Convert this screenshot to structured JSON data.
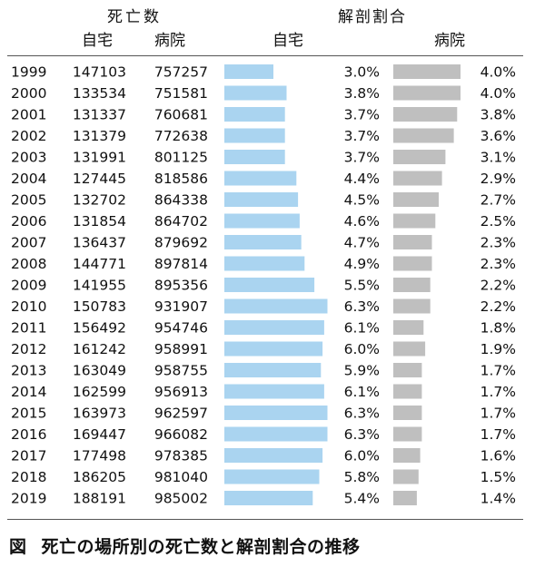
{
  "caption": {
    "label": "図",
    "title": "死亡の場所別の死亡数と解剖割合の推移"
  },
  "chart_data": {
    "type": "table",
    "header": {
      "deaths_group": "死亡数",
      "autopsy_group": "解剖割合",
      "home": "自宅",
      "hospital": "病院"
    },
    "colors": {
      "home_bar": "#aad4f0",
      "hospital_bar": "#bfbfbf"
    },
    "years": [
      "1999",
      "2000",
      "2001",
      "2002",
      "2003",
      "2004",
      "2005",
      "2006",
      "2007",
      "2008",
      "2009",
      "2010",
      "2011",
      "2012",
      "2013",
      "2014",
      "2015",
      "2016",
      "2017",
      "2018",
      "2019"
    ],
    "deaths_home": [
      147103,
      133534,
      131337,
      131379,
      131991,
      127445,
      132702,
      131854,
      136437,
      144771,
      141955,
      150783,
      156492,
      161242,
      163049,
      162599,
      163973,
      169447,
      177498,
      186205,
      188191
    ],
    "deaths_hospital": [
      757257,
      751581,
      760681,
      772638,
      801125,
      818586,
      864338,
      864702,
      879692,
      897814,
      895356,
      931907,
      954746,
      958991,
      958755,
      956913,
      962597,
      966082,
      978385,
      981040,
      985002
    ],
    "autopsy_home_pct": [
      3.0,
      3.8,
      3.7,
      3.7,
      3.7,
      4.4,
      4.5,
      4.6,
      4.7,
      4.9,
      5.5,
      6.3,
      6.1,
      6.0,
      5.9,
      6.1,
      6.3,
      6.3,
      6.0,
      5.8,
      5.4
    ],
    "autopsy_hospital_pct": [
      4.0,
      4.0,
      3.8,
      3.6,
      3.1,
      2.9,
      2.7,
      2.5,
      2.3,
      2.3,
      2.2,
      2.2,
      1.8,
      1.9,
      1.7,
      1.7,
      1.7,
      1.7,
      1.6,
      1.5,
      1.4
    ],
    "autopsy_home_labels": [
      "3.0%",
      "3.8%",
      "3.7%",
      "3.7%",
      "3.7%",
      "4.4%",
      "4.5%",
      "4.6%",
      "4.7%",
      "4.9%",
      "5.5%",
      "6.3%",
      "6.1%",
      "6.0%",
      "5.9%",
      "6.1%",
      "6.3%",
      "6.3%",
      "6.0%",
      "5.8%",
      "5.4%"
    ],
    "autopsy_hospital_labels": [
      "4.0%",
      "4.0%",
      "3.8%",
      "3.6%",
      "3.1%",
      "2.9%",
      "2.7%",
      "2.5%",
      "2.3%",
      "2.3%",
      "2.2%",
      "2.2%",
      "1.8%",
      "1.9%",
      "1.7%",
      "1.7%",
      "1.7%",
      "1.7%",
      "1.6%",
      "1.5%",
      "1.4%"
    ]
  }
}
